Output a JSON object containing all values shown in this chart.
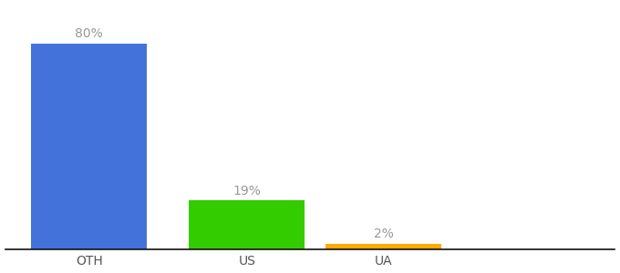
{
  "categories": [
    "OTH",
    "US",
    "UA"
  ],
  "values": [
    80,
    19,
    2
  ],
  "bar_colors": [
    "#4472db",
    "#33cc00",
    "#ffaa00"
  ],
  "value_labels": [
    "80%",
    "19%",
    "2%"
  ],
  "background_color": "#ffffff",
  "xlim": [
    -0.3,
    5.5
  ],
  "ylim": [
    0,
    95
  ],
  "label_fontsize": 10,
  "tick_fontsize": 10,
  "bar_width": 1.1,
  "x_positions": [
    0.5,
    2.0,
    3.3
  ]
}
